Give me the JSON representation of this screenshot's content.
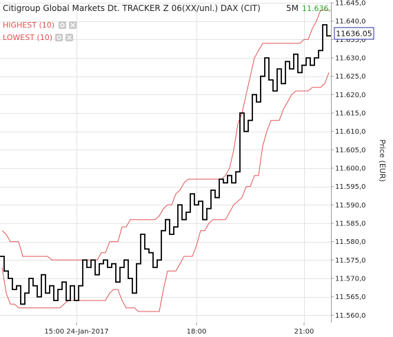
{
  "chart_data": {
    "type": "line",
    "title": "Citigroup Global Markets Dt. TRACKER Z 06(XX/unl.) DAX (CIT)",
    "interval": "5M",
    "title_value": "11.636,",
    "ylabel": "Price (EUR)",
    "ylim": [
      11558,
      11645
    ],
    "y_ticks": [
      {
        "v": 11560,
        "label": "11.560,0"
      },
      {
        "v": 11565,
        "label": "11.565,0"
      },
      {
        "v": 11570,
        "label": "11.570,0"
      },
      {
        "v": 11575,
        "label": "11.575,0"
      },
      {
        "v": 11580,
        "label": "11.580,0"
      },
      {
        "v": 11585,
        "label": "11.585,0"
      },
      {
        "v": 11590,
        "label": "11.590,0"
      },
      {
        "v": 11595,
        "label": "11.595,0"
      },
      {
        "v": 11600,
        "label": "11.600,0"
      },
      {
        "v": 11605,
        "label": "11.605,0"
      },
      {
        "v": 11610,
        "label": "11.610,0"
      },
      {
        "v": 11615,
        "label": "11.615,0"
      },
      {
        "v": 11620,
        "label": "11.620,0"
      },
      {
        "v": 11625,
        "label": "11.625,0"
      },
      {
        "v": 11630,
        "label": "11.630,0"
      },
      {
        "v": 11635,
        "label": "11.635,0"
      },
      {
        "v": 11640,
        "label": "11.640,0"
      },
      {
        "v": 11645,
        "label": "11.645,0"
      }
    ],
    "x_count": 80,
    "x_ticks": [
      {
        "i": 18,
        "label": "15:00 24-Jan-2017"
      },
      {
        "i": 47,
        "label": "18:00"
      },
      {
        "i": 73,
        "label": "21:00"
      }
    ],
    "last_value_label": "11636.05",
    "grid": true,
    "series": [
      {
        "name": "Price",
        "color": "#000000",
        "values": [
          11576,
          11572,
          11570,
          11567,
          11568,
          11563,
          11566,
          11570,
          11568,
          11565,
          11571,
          11566,
          11568,
          11564,
          11567,
          11569,
          11564,
          11568,
          11564,
          11568,
          11575,
          11573,
          11575,
          11571,
          11574,
          11575,
          11573,
          11574,
          11569,
          11573,
          11575,
          11570,
          11566,
          11574,
          11582,
          11578,
          11577,
          11573,
          11575,
          11583,
          11586,
          11582,
          11584,
          11590,
          11586,
          11588,
          11593,
          11590,
          11591,
          11586,
          11589,
          11594,
          11592,
          11597,
          11596,
          11598,
          11596,
          11599,
          11615,
          11610,
          11613,
          11620,
          11618,
          11625,
          11630,
          11624,
          11621,
          11627,
          11623,
          11629,
          11627,
          11631,
          11626,
          11628,
          11630,
          11628,
          11630,
          11632,
          11639,
          11636
        ]
      },
      {
        "name": "HIGHEST (10)",
        "color": "#e05050",
        "values": [
          11583,
          11582,
          11580,
          11580,
          11580,
          11576,
          11576,
          11576,
          11576,
          11576,
          11576,
          11576,
          11575,
          11575,
          11575,
          11575,
          11575,
          11575,
          11575,
          11575,
          11575,
          11575,
          11575,
          11575,
          11577,
          11577,
          11580,
          11580,
          11580,
          11584,
          11584,
          11586,
          11586,
          11586,
          11586,
          11586,
          11586,
          11586,
          11587,
          11589,
          11590,
          11590,
          11593,
          11594,
          11596,
          11597,
          11597,
          11597,
          11597,
          11597,
          11597,
          11597,
          11597,
          11597,
          11598,
          11600,
          11605,
          11612,
          11615,
          11620,
          11625,
          11630,
          11632,
          11634,
          11634,
          11634,
          11634,
          11634,
          11634,
          11634,
          11634,
          11634,
          11634,
          11635,
          11635,
          11638,
          11640,
          11643,
          11643,
          11643
        ]
      },
      {
        "name": "LOWEST (10)",
        "color": "#e05050",
        "values": [
          11573,
          11566,
          11563,
          11563,
          11562,
          11562,
          11562,
          11562,
          11562,
          11562,
          11562,
          11562,
          11562,
          11562,
          11562,
          11563,
          11564,
          11564,
          11564,
          11564,
          11564,
          11564,
          11564,
          11564,
          11564,
          11564,
          11566,
          11567,
          11567,
          11564,
          11562,
          11562,
          11562,
          11561,
          11561,
          11561,
          11561,
          11561,
          11561,
          11567,
          11572,
          11572,
          11572,
          11574,
          11576,
          11576,
          11576,
          11579,
          11583,
          11583,
          11585,
          11586,
          11586,
          11586,
          11586,
          11588,
          11590,
          11591,
          11592,
          11595,
          11595,
          11598,
          11598,
          11606,
          11610,
          11613,
          11613,
          11613,
          11616,
          11618,
          11620,
          11621,
          11621,
          11621,
          11621,
          11622,
          11622,
          11622,
          11623,
          11626
        ]
      }
    ]
  },
  "legend": {
    "highest_label": "HIGHEST (10)",
    "lowest_label": "LOWEST (10)"
  }
}
